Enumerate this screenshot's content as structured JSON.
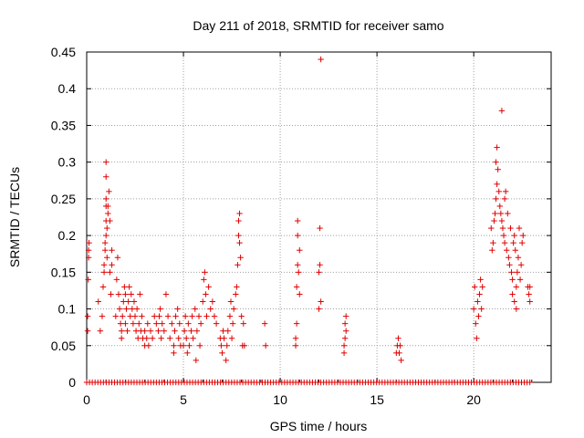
{
  "chart_data": {
    "type": "scatter",
    "title": "Day 211 of 2018, SRMTID for receiver samo",
    "xlabel": "GPS time / hours",
    "ylabel": "SRMTID / TECUs",
    "xlim": [
      0,
      24
    ],
    "ylim": [
      0,
      0.45
    ],
    "xticks": [
      0,
      5,
      10,
      15,
      20
    ],
    "xtick_labels": [
      "0",
      "5",
      "10",
      "15",
      "20"
    ],
    "yticks": [
      0,
      0.05,
      0.1,
      0.15,
      0.2,
      0.25,
      0.3,
      0.35,
      0.4,
      0.45
    ],
    "ytick_labels": [
      "0",
      "0.05",
      "0.1",
      "0.15",
      "0.2",
      "0.25",
      "0.3",
      "0.35",
      "0.4",
      "0.45"
    ],
    "grid": true,
    "marker": "+",
    "color": "#e00000",
    "baseline": {
      "y": 0,
      "x_start": 0,
      "x_end": 22.9,
      "count": 160
    },
    "series": [
      {
        "name": "SRMTID",
        "points": [
          [
            0.05,
            0.07
          ],
          [
            0.05,
            0.09
          ],
          [
            0.08,
            0.14
          ],
          [
            0.1,
            0.17
          ],
          [
            0.1,
            0.18
          ],
          [
            0.12,
            0.19
          ],
          [
            0.6,
            0.11
          ],
          [
            0.7,
            0.07
          ],
          [
            0.8,
            0.09
          ],
          [
            0.85,
            0.13
          ],
          [
            0.9,
            0.15
          ],
          [
            0.9,
            0.16
          ],
          [
            0.95,
            0.18
          ],
          [
            0.95,
            0.19
          ],
          [
            1.0,
            0.2
          ],
          [
            1.0,
            0.22
          ],
          [
            1.0,
            0.24
          ],
          [
            1.0,
            0.25
          ],
          [
            1.0,
            0.28
          ],
          [
            1.0,
            0.3
          ],
          [
            1.05,
            0.17
          ],
          [
            1.05,
            0.21
          ],
          [
            1.1,
            0.23
          ],
          [
            1.1,
            0.24
          ],
          [
            1.15,
            0.26
          ],
          [
            1.2,
            0.22
          ],
          [
            1.2,
            0.15
          ],
          [
            1.25,
            0.12
          ],
          [
            1.3,
            0.16
          ],
          [
            1.3,
            0.18
          ],
          [
            1.5,
            0.09
          ],
          [
            1.55,
            0.14
          ],
          [
            1.6,
            0.17
          ],
          [
            1.65,
            0.12
          ],
          [
            1.7,
            0.1
          ],
          [
            1.75,
            0.08
          ],
          [
            1.8,
            0.07
          ],
          [
            1.8,
            0.06
          ],
          [
            1.85,
            0.09
          ],
          [
            1.9,
            0.11
          ],
          [
            1.95,
            0.13
          ],
          [
            2.0,
            0.08
          ],
          [
            2.0,
            0.12
          ],
          [
            2.05,
            0.1
          ],
          [
            2.1,
            0.07
          ],
          [
            2.15,
            0.11
          ],
          [
            2.2,
            0.13
          ],
          [
            2.25,
            0.09
          ],
          [
            2.3,
            0.12
          ],
          [
            2.35,
            0.1
          ],
          [
            2.4,
            0.08
          ],
          [
            2.45,
            0.11
          ],
          [
            2.5,
            0.09
          ],
          [
            2.55,
            0.07
          ],
          [
            2.6,
            0.1
          ],
          [
            2.65,
            0.06
          ],
          [
            2.7,
            0.08
          ],
          [
            2.75,
            0.12
          ],
          [
            2.8,
            0.07
          ],
          [
            2.85,
            0.09
          ],
          [
            2.9,
            0.06
          ],
          [
            3.0,
            0.05
          ],
          [
            3.0,
            0.07
          ],
          [
            3.1,
            0.06
          ],
          [
            3.15,
            0.08
          ],
          [
            3.2,
            0.05
          ],
          [
            3.3,
            0.07
          ],
          [
            3.4,
            0.06
          ],
          [
            3.5,
            0.09
          ],
          [
            3.6,
            0.08
          ],
          [
            3.7,
            0.07
          ],
          [
            3.75,
            0.09
          ],
          [
            3.8,
            0.1
          ],
          [
            3.85,
            0.06
          ],
          [
            3.9,
            0.08
          ],
          [
            4.0,
            0.07
          ],
          [
            4.1,
            0.12
          ],
          [
            4.2,
            0.09
          ],
          [
            4.3,
            0.06
          ],
          [
            4.4,
            0.08
          ],
          [
            4.5,
            0.04
          ],
          [
            4.5,
            0.05
          ],
          [
            4.55,
            0.07
          ],
          [
            4.6,
            0.09
          ],
          [
            4.7,
            0.1
          ],
          [
            4.75,
            0.06
          ],
          [
            4.8,
            0.08
          ],
          [
            4.85,
            0.05
          ],
          [
            5.0,
            0.05
          ],
          [
            5.05,
            0.07
          ],
          [
            5.1,
            0.09
          ],
          [
            5.15,
            0.06
          ],
          [
            5.2,
            0.04
          ],
          [
            5.25,
            0.08
          ],
          [
            5.3,
            0.05
          ],
          [
            5.4,
            0.07
          ],
          [
            5.45,
            0.09
          ],
          [
            5.5,
            0.06
          ],
          [
            5.6,
            0.1
          ],
          [
            5.65,
            0.03
          ],
          [
            5.7,
            0.07
          ],
          [
            5.8,
            0.09
          ],
          [
            5.85,
            0.05
          ],
          [
            5.9,
            0.08
          ],
          [
            6.0,
            0.11
          ],
          [
            6.05,
            0.14
          ],
          [
            6.1,
            0.15
          ],
          [
            6.15,
            0.12
          ],
          [
            6.2,
            0.09
          ],
          [
            6.3,
            0.13
          ],
          [
            6.4,
            0.1
          ],
          [
            6.5,
            0.11
          ],
          [
            6.6,
            0.09
          ],
          [
            6.7,
            0.08
          ],
          [
            6.9,
            0.06
          ],
          [
            6.95,
            0.05
          ],
          [
            7.0,
            0.04
          ],
          [
            7.05,
            0.07
          ],
          [
            7.1,
            0.06
          ],
          [
            7.2,
            0.03
          ],
          [
            7.25,
            0.05
          ],
          [
            7.3,
            0.07
          ],
          [
            7.4,
            0.09
          ],
          [
            7.45,
            0.11
          ],
          [
            7.5,
            0.06
          ],
          [
            7.55,
            0.08
          ],
          [
            7.6,
            0.1
          ],
          [
            7.7,
            0.12
          ],
          [
            7.75,
            0.13
          ],
          [
            7.8,
            0.16
          ],
          [
            7.85,
            0.2
          ],
          [
            7.85,
            0.22
          ],
          [
            7.9,
            0.19
          ],
          [
            7.9,
            0.23
          ],
          [
            7.95,
            0.17
          ],
          [
            8.0,
            0.09
          ],
          [
            8.05,
            0.05
          ],
          [
            8.1,
            0.08
          ],
          [
            8.15,
            0.05
          ],
          [
            9.2,
            0.08
          ],
          [
            9.25,
            0.05
          ],
          [
            10.8,
            0.05
          ],
          [
            10.8,
            0.06
          ],
          [
            10.85,
            0.08
          ],
          [
            10.85,
            0.13
          ],
          [
            10.9,
            0.16
          ],
          [
            10.9,
            0.2
          ],
          [
            10.9,
            0.22
          ],
          [
            10.95,
            0.15
          ],
          [
            11.0,
            0.18
          ],
          [
            11.0,
            0.12
          ],
          [
            12.0,
            0.1
          ],
          [
            12.0,
            0.15
          ],
          [
            12.05,
            0.16
          ],
          [
            12.05,
            0.21
          ],
          [
            12.1,
            0.44
          ],
          [
            12.1,
            0.11
          ],
          [
            13.3,
            0.05
          ],
          [
            13.3,
            0.04
          ],
          [
            13.35,
            0.06
          ],
          [
            13.35,
            0.08
          ],
          [
            13.4,
            0.07
          ],
          [
            13.4,
            0.09
          ],
          [
            16.0,
            0.04
          ],
          [
            16.05,
            0.05
          ],
          [
            16.1,
            0.06
          ],
          [
            16.15,
            0.04
          ],
          [
            16.2,
            0.05
          ],
          [
            16.25,
            0.03
          ],
          [
            20.0,
            0.1
          ],
          [
            20.05,
            0.13
          ],
          [
            20.1,
            0.08
          ],
          [
            20.15,
            0.06
          ],
          [
            20.2,
            0.11
          ],
          [
            20.25,
            0.09
          ],
          [
            20.3,
            0.12
          ],
          [
            20.35,
            0.14
          ],
          [
            20.4,
            0.1
          ],
          [
            20.45,
            0.13
          ],
          [
            20.9,
            0.21
          ],
          [
            20.95,
            0.18
          ],
          [
            21.0,
            0.19
          ],
          [
            21.05,
            0.22
          ],
          [
            21.1,
            0.23
          ],
          [
            21.15,
            0.25
          ],
          [
            21.15,
            0.3
          ],
          [
            21.2,
            0.32
          ],
          [
            21.2,
            0.27
          ],
          [
            21.25,
            0.29
          ],
          [
            21.3,
            0.26
          ],
          [
            21.35,
            0.24
          ],
          [
            21.4,
            0.23
          ],
          [
            21.45,
            0.22
          ],
          [
            21.45,
            0.37
          ],
          [
            21.5,
            0.21
          ],
          [
            21.55,
            0.2
          ],
          [
            21.6,
            0.25
          ],
          [
            21.6,
            0.19
          ],
          [
            21.65,
            0.26
          ],
          [
            21.7,
            0.18
          ],
          [
            21.75,
            0.23
          ],
          [
            21.8,
            0.17
          ],
          [
            21.85,
            0.16
          ],
          [
            21.9,
            0.21
          ],
          [
            21.95,
            0.15
          ],
          [
            22.0,
            0.14
          ],
          [
            22.0,
            0.12
          ],
          [
            22.05,
            0.19
          ],
          [
            22.1,
            0.2
          ],
          [
            22.1,
            0.11
          ],
          [
            22.15,
            0.18
          ],
          [
            22.2,
            0.13
          ],
          [
            22.2,
            0.1
          ],
          [
            22.25,
            0.15
          ],
          [
            22.3,
            0.17
          ],
          [
            22.35,
            0.21
          ],
          [
            22.4,
            0.14
          ],
          [
            22.45,
            0.16
          ],
          [
            22.5,
            0.19
          ],
          [
            22.55,
            0.2
          ],
          [
            22.8,
            0.13
          ],
          [
            22.85,
            0.12
          ],
          [
            22.9,
            0.11
          ],
          [
            22.9,
            0.13
          ]
        ]
      }
    ]
  }
}
